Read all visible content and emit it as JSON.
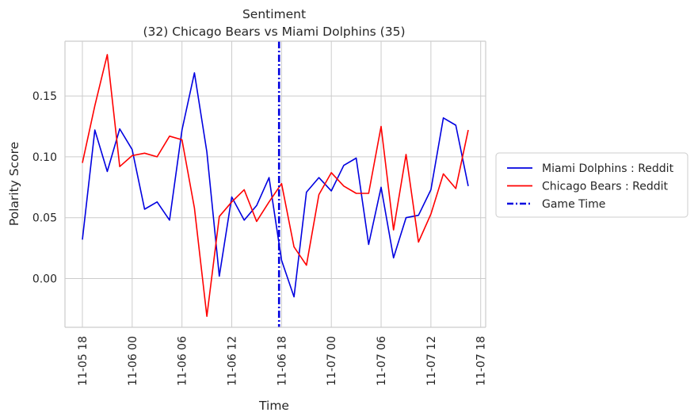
{
  "chart_data": {
    "type": "line",
    "title": "Sentiment",
    "subtitle": "(32) Chicago Bears vs Miami Dolphins (35)",
    "xlabel": "Time",
    "ylabel": "Polarity Score",
    "x_ticks": [
      "11-05 18",
      "11-06 00",
      "11-06 06",
      "11-06 12",
      "11-06 18",
      "11-07 00",
      "11-07 06",
      "11-07 12",
      "11-07 18"
    ],
    "x_tick_hours": [
      0,
      6,
      12,
      18,
      24,
      30,
      36,
      42,
      48
    ],
    "y_ticks": [
      "0.00",
      "0.05",
      "0.10",
      "0.15"
    ],
    "y_tick_values": [
      0.0,
      0.05,
      0.1,
      0.15
    ],
    "xlim_hours": [
      -2.1,
      48.6
    ],
    "ylim": [
      -0.04,
      0.195
    ],
    "grid": true,
    "legend_position": "right-outside",
    "x_hours": [
      0,
      1.5,
      3,
      4.5,
      6,
      7.5,
      9,
      10.5,
      12,
      13.5,
      15,
      16.5,
      18,
      19.5,
      21,
      22.5,
      24,
      25.5,
      27,
      28.5,
      30,
      31.5,
      33,
      34.5,
      36,
      37.5,
      39,
      40.5,
      42,
      43.5,
      45,
      46.5
    ],
    "series": [
      {
        "name": "Miami Dolphins : Reddit",
        "color": "#0000e0",
        "style": "solid",
        "values": [
          0.032,
          0.122,
          0.088,
          0.123,
          0.106,
          0.057,
          0.063,
          0.048,
          0.122,
          0.169,
          0.104,
          0.002,
          0.067,
          0.048,
          0.06,
          0.083,
          0.015,
          -0.015,
          0.071,
          0.083,
          0.072,
          0.093,
          0.099,
          0.028,
          0.075,
          0.017,
          0.05,
          0.052,
          0.073,
          0.132,
          0.126,
          0.076
        ]
      },
      {
        "name": "Chicago Bears : Reddit",
        "color": "#ff0000",
        "style": "solid",
        "values": [
          0.095,
          0.142,
          0.184,
          0.092,
          0.101,
          0.103,
          0.1,
          0.117,
          0.114,
          0.058,
          -0.031,
          0.051,
          0.063,
          0.073,
          0.047,
          0.063,
          0.078,
          0.026,
          0.011,
          0.069,
          0.087,
          0.076,
          0.07,
          0.07,
          0.125,
          0.04,
          0.102,
          0.03,
          0.053,
          0.086,
          0.074,
          0.122
        ]
      }
    ],
    "vline": {
      "name": "Game Time",
      "x_hour": 23.7,
      "color": "#0000e0",
      "style": "dashdot"
    }
  }
}
